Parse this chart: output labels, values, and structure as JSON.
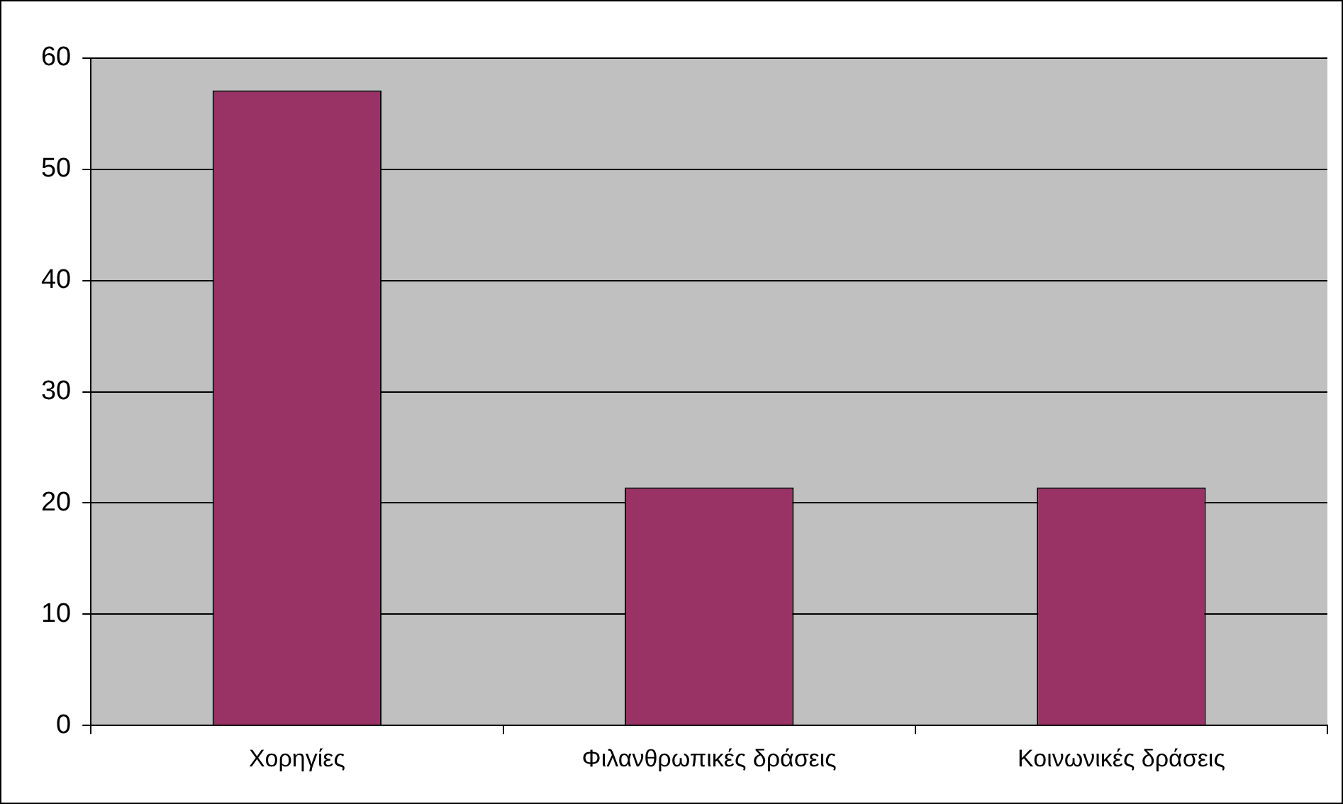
{
  "chart_data": {
    "type": "bar",
    "categories": [
      "Χορηγίες",
      "Φιλανθρωπικές δράσεις",
      "Κοινωνικές δράσεις"
    ],
    "values": [
      57.1,
      21.4,
      21.4
    ],
    "color": "#993366",
    "ylim": [
      0,
      60
    ],
    "yticks": [
      0,
      10,
      20,
      30,
      40,
      50,
      60
    ],
    "grid": "y",
    "legend": false
  }
}
